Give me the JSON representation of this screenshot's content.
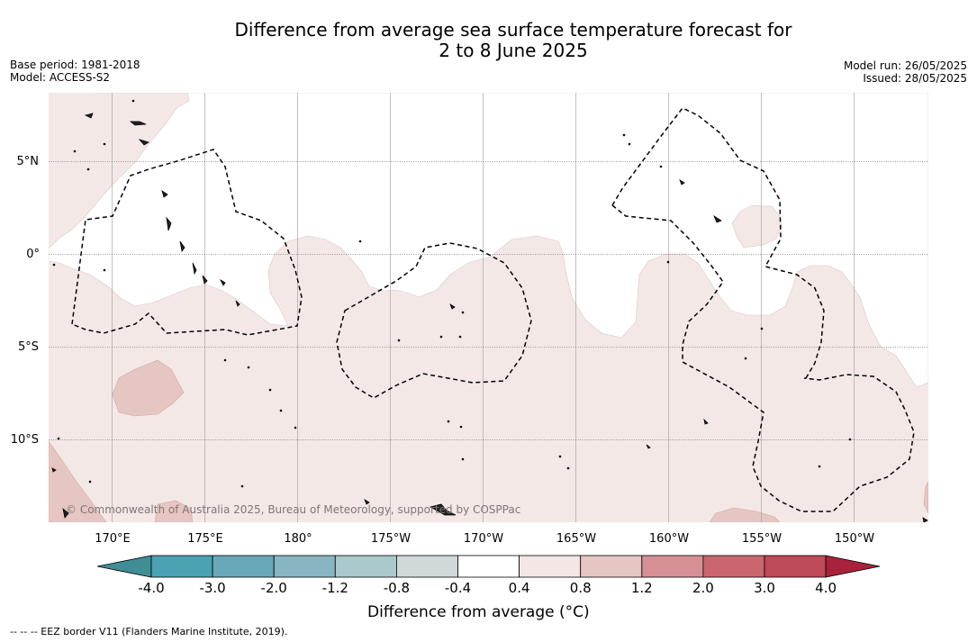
{
  "title": {
    "line1": "Difference from average sea surface temperature forecast for",
    "line2": "2 to 8 June 2025"
  },
  "info_left": {
    "base_period": "Base period: 1981-2018",
    "model": "Model: ACCESS-S2"
  },
  "info_right": {
    "model_run": "Model run: 26/05/2025",
    "issued": "Issued: 28/05/2025"
  },
  "map": {
    "lat_labels": [
      "5°N",
      "0°",
      "5°S",
      "10°S"
    ],
    "lon_labels": [
      "170°E",
      "175°E",
      "180°",
      "175°W",
      "170°W",
      "165°W",
      "160°W",
      "155°W",
      "150°W"
    ],
    "copyright": "© Commonwealth of Australia 2025, Bureau of Meteorology, supported by COSPPac",
    "colors": {
      "anomaly_0_4_0_8": "#f4e8e6",
      "anomaly_0_8_1_2": "#e6c6c2",
      "below_0_4": "#ffffff",
      "eez_border": "#000000"
    }
  },
  "colorbar": {
    "title": "Difference from average (°C)",
    "tick_labels": [
      "-4.0",
      "-3.0",
      "-2.0",
      "-1.2",
      "-0.8",
      "-0.4",
      "0.4",
      "0.8",
      "1.2",
      "2.0",
      "3.0",
      "4.0"
    ],
    "colors": [
      "#3f8e96",
      "#4aa2b3",
      "#68a8b8",
      "#88b5c2",
      "#a9c9cc",
      "#cfd9da",
      "#ffffff",
      "#f4e6e5",
      "#e6c6c2",
      "#d68f94",
      "#c9666e",
      "#bf4a58",
      "#a8223b"
    ]
  },
  "footer": "--  --  -- EEZ border V11 (Flanders Marine Institute, 2019)."
}
